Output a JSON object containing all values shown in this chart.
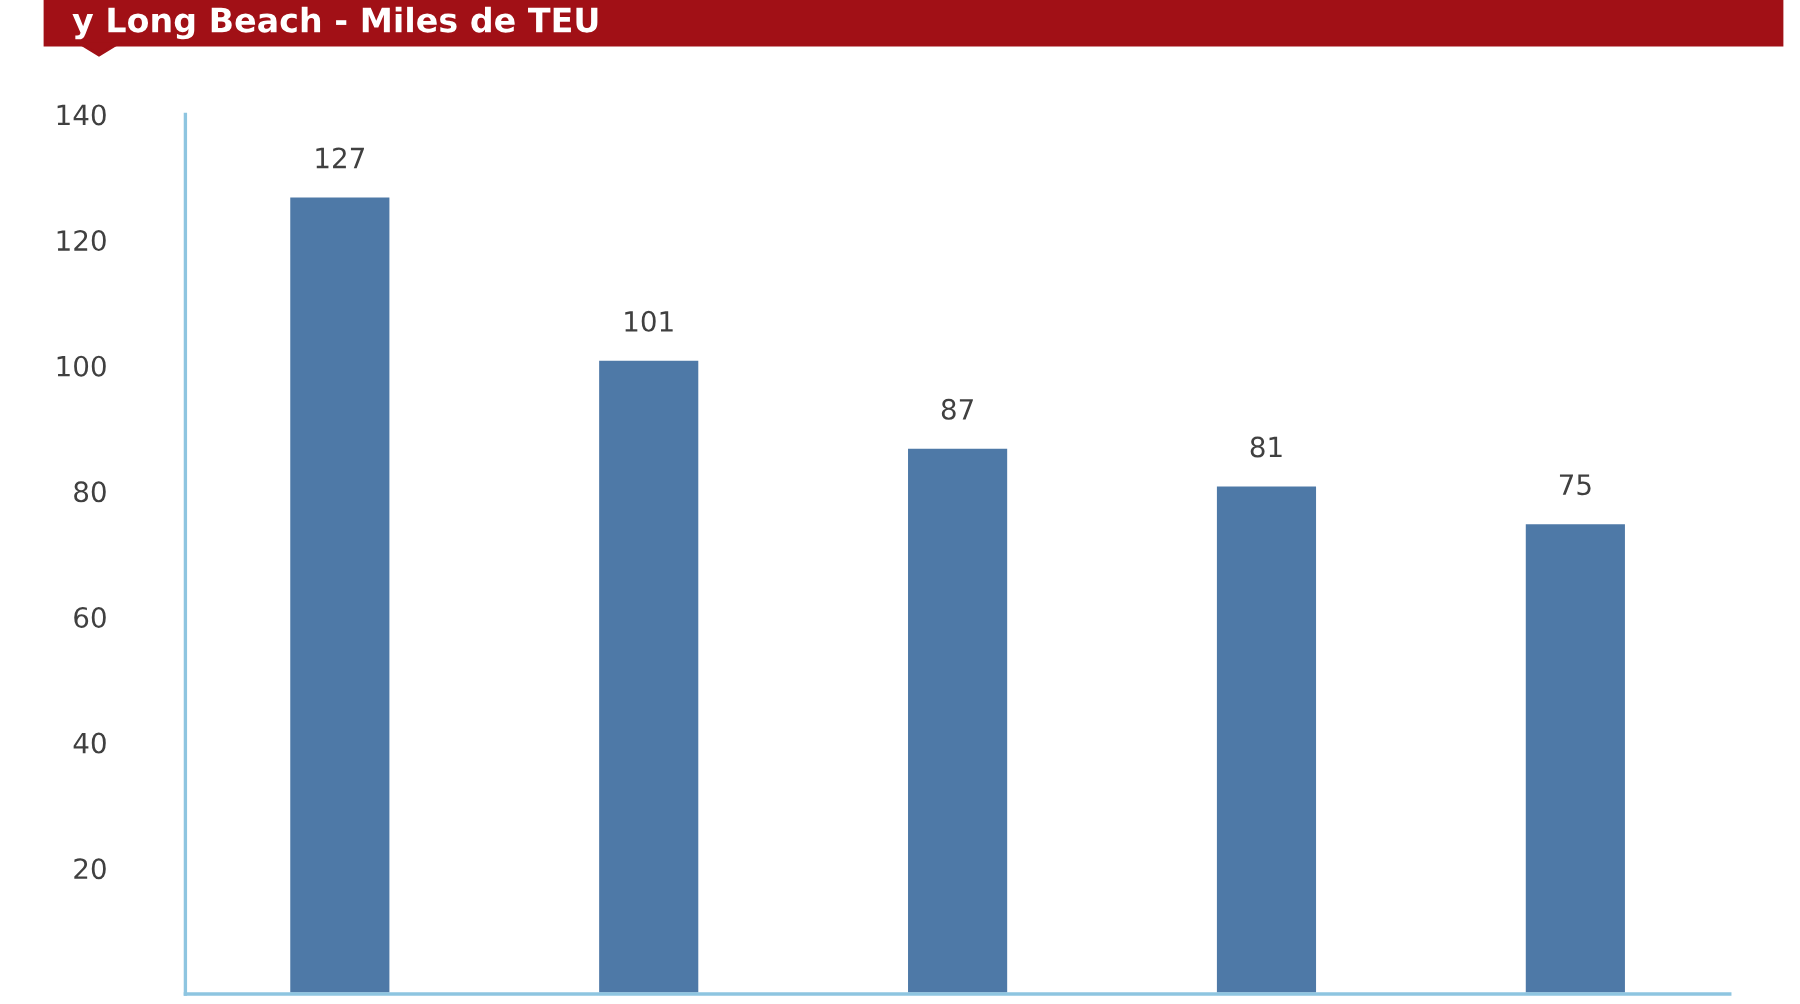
{
  "chart_data": {
    "type": "bar",
    "title": "y Long Beach - Miles de TEU",
    "categories": [
      null,
      null,
      null,
      null,
      null
    ],
    "values": [
      127,
      101,
      87,
      81,
      75
    ],
    "color": "#4e79a7",
    "ylim": [
      0,
      140
    ],
    "yticks": [
      20,
      40,
      60,
      80,
      100,
      120,
      140
    ],
    "data_labels": true,
    "grid": false,
    "legend": false
  }
}
